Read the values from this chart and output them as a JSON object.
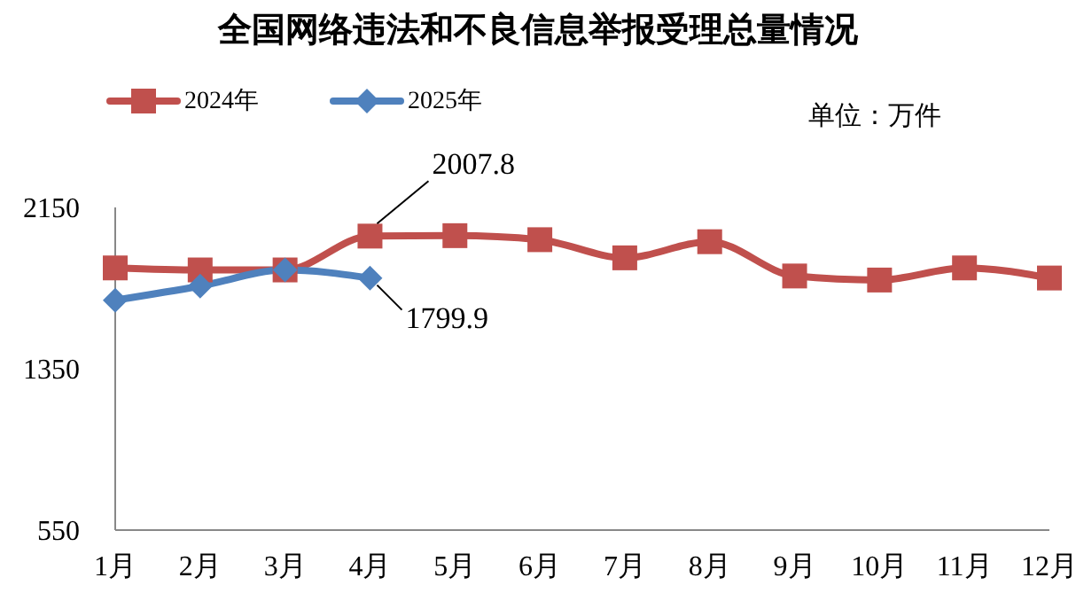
{
  "chart_data": {
    "type": "line",
    "title": "全国网络违法和不良信息举报受理总量情况",
    "annotations": [
      "单位：万件"
    ],
    "categories": [
      "1月",
      "2月",
      "3月",
      "4月",
      "5月",
      "6月",
      "7月",
      "8月",
      "9月",
      "10月",
      "11月",
      "12月"
    ],
    "series": [
      {
        "name": "2024年",
        "color": "#c0504d",
        "marker": "square",
        "values": [
          1850,
          1840,
          1840,
          2007.8,
          2010,
          1990,
          1900,
          1980,
          1810,
          1790,
          1850,
          1800
        ],
        "value_labels": [
          null,
          null,
          null,
          "2007.8",
          null,
          null,
          null,
          null,
          null,
          null,
          null,
          null
        ]
      },
      {
        "name": "2025年",
        "color": "#4f81bd",
        "marker": "diamond",
        "values": [
          1690,
          1760,
          1840,
          1799.9,
          null,
          null,
          null,
          null,
          null,
          null,
          null,
          null
        ],
        "value_labels": [
          null,
          null,
          null,
          "1799.9",
          null,
          null,
          null,
          null,
          null,
          null,
          null,
          null
        ]
      }
    ],
    "ylim": [
      550,
      2150
    ],
    "yticks": [
      550,
      1350,
      2150
    ],
    "grid": false,
    "legend": "top left"
  }
}
